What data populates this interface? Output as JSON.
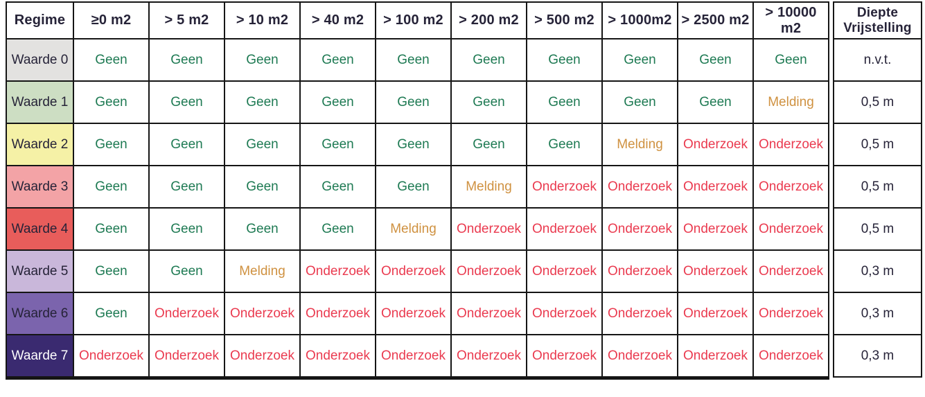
{
  "table": {
    "header": {
      "regime_label": "Regime",
      "area_columns": [
        "≥0 m2",
        "> 5 m2",
        "> 10 m2",
        "> 40 m2",
        "> 100 m2",
        "> 200 m2",
        "> 500 m2",
        "> 1000m2",
        "> 2500 m2",
        "> 10000 m2"
      ],
      "side_label": "Diepte Vrijstelling"
    },
    "text_color": "#262338",
    "border_color": "#151515",
    "value_colors": {
      "Geen": "#1e7a53",
      "Melding": "#cf9140",
      "Onderzoek": "#ea3a4f"
    },
    "rows": [
      {
        "label": "Waarde 0",
        "bg": "#e3e2e0",
        "fg": "#262338",
        "values": [
          "Geen",
          "Geen",
          "Geen",
          "Geen",
          "Geen",
          "Geen",
          "Geen",
          "Geen",
          "Geen",
          "Geen"
        ],
        "diepte": "n.v.t."
      },
      {
        "label": "Waarde 1",
        "bg": "#cddec3",
        "fg": "#262338",
        "values": [
          "Geen",
          "Geen",
          "Geen",
          "Geen",
          "Geen",
          "Geen",
          "Geen",
          "Geen",
          "Geen",
          "Melding"
        ],
        "diepte": "0,5 m"
      },
      {
        "label": "Waarde 2",
        "bg": "#f5f1a6",
        "fg": "#262338",
        "values": [
          "Geen",
          "Geen",
          "Geen",
          "Geen",
          "Geen",
          "Geen",
          "Geen",
          "Melding",
          "Onderzoek",
          "Onderzoek"
        ],
        "diepte": "0,5 m"
      },
      {
        "label": "Waarde 3",
        "bg": "#f3a3a6",
        "fg": "#262338",
        "values": [
          "Geen",
          "Geen",
          "Geen",
          "Geen",
          "Geen",
          "Melding",
          "Onderzoek",
          "Onderzoek",
          "Onderzoek",
          "Onderzoek"
        ],
        "diepte": "0,5 m"
      },
      {
        "label": "Waarde 4",
        "bg": "#e85d5b",
        "fg": "#262338",
        "values": [
          "Geen",
          "Geen",
          "Geen",
          "Geen",
          "Melding",
          "Onderzoek",
          "Onderzoek",
          "Onderzoek",
          "Onderzoek",
          "Onderzoek"
        ],
        "diepte": "0,5 m"
      },
      {
        "label": "Waarde 5",
        "bg": "#c9b7da",
        "fg": "#262338",
        "values": [
          "Geen",
          "Geen",
          "Melding",
          "Onderzoek",
          "Onderzoek",
          "Onderzoek",
          "Onderzoek",
          "Onderzoek",
          "Onderzoek",
          "Onderzoek"
        ],
        "diepte": "0,3 m"
      },
      {
        "label": "Waarde 6",
        "bg": "#7b64ad",
        "fg": "#262338",
        "values": [
          "Geen",
          "Onderzoek",
          "Onderzoek",
          "Onderzoek",
          "Onderzoek",
          "Onderzoek",
          "Onderzoek",
          "Onderzoek",
          "Onderzoek",
          "Onderzoek"
        ],
        "diepte": "0,3 m"
      },
      {
        "label": "Waarde 7",
        "bg": "#3a2a70",
        "fg": "#ffffff",
        "values": [
          "Onderzoek",
          "Onderzoek",
          "Onderzoek",
          "Onderzoek",
          "Onderzoek",
          "Onderzoek",
          "Onderzoek",
          "Onderzoek",
          "Onderzoek",
          "Onderzoek"
        ],
        "diepte": "0,3 m"
      }
    ]
  },
  "chart_data": {
    "type": "table",
    "title": "Regime / oppervlakte tabel",
    "columns": [
      "Regime",
      "≥0 m2",
      "> 5 m2",
      "> 10 m2",
      "> 40 m2",
      "> 100 m2",
      "> 200 m2",
      "> 500 m2",
      "> 1000m2",
      "> 2500 m2",
      "> 10000 m2",
      "Diepte Vrijstelling"
    ],
    "rows": [
      [
        "Waarde 0",
        "Geen",
        "Geen",
        "Geen",
        "Geen",
        "Geen",
        "Geen",
        "Geen",
        "Geen",
        "Geen",
        "Geen",
        "n.v.t."
      ],
      [
        "Waarde 1",
        "Geen",
        "Geen",
        "Geen",
        "Geen",
        "Geen",
        "Geen",
        "Geen",
        "Geen",
        "Geen",
        "Melding",
        "0,5 m"
      ],
      [
        "Waarde 2",
        "Geen",
        "Geen",
        "Geen",
        "Geen",
        "Geen",
        "Geen",
        "Geen",
        "Melding",
        "Onderzoek",
        "Onderzoek",
        "0,5 m"
      ],
      [
        "Waarde 3",
        "Geen",
        "Geen",
        "Geen",
        "Geen",
        "Geen",
        "Melding",
        "Onderzoek",
        "Onderzoek",
        "Onderzoek",
        "Onderzoek",
        "0,5 m"
      ],
      [
        "Waarde 4",
        "Geen",
        "Geen",
        "Geen",
        "Geen",
        "Melding",
        "Onderzoek",
        "Onderzoek",
        "Onderzoek",
        "Onderzoek",
        "Onderzoek",
        "0,5 m"
      ],
      [
        "Waarde 5",
        "Geen",
        "Geen",
        "Melding",
        "Onderzoek",
        "Onderzoek",
        "Onderzoek",
        "Onderzoek",
        "Onderzoek",
        "Onderzoek",
        "Onderzoek",
        "0,3 m"
      ],
      [
        "Waarde 6",
        "Geen",
        "Onderzoek",
        "Onderzoek",
        "Onderzoek",
        "Onderzoek",
        "Onderzoek",
        "Onderzoek",
        "Onderzoek",
        "Onderzoek",
        "Onderzoek",
        "0,3 m"
      ],
      [
        "Waarde 7",
        "Onderzoek",
        "Onderzoek",
        "Onderzoek",
        "Onderzoek",
        "Onderzoek",
        "Onderzoek",
        "Onderzoek",
        "Onderzoek",
        "Onderzoek",
        "Onderzoek",
        "0,3 m"
      ]
    ]
  }
}
